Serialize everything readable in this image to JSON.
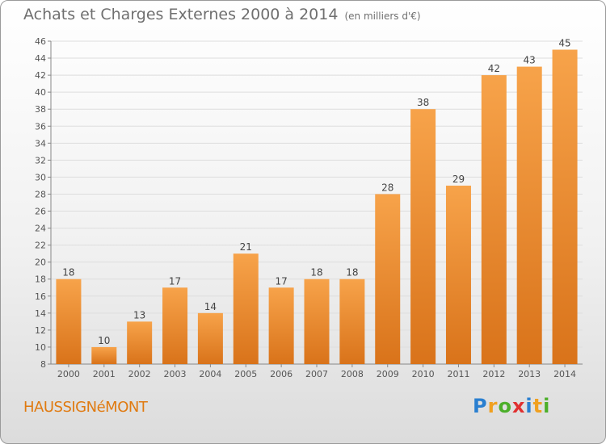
{
  "title": "Achats et Charges Externes 2000 à 2014",
  "subtitle": "(en milliers d'€)",
  "commune": "HAUSSIGNéMONT",
  "logo": {
    "text": "Proxiti",
    "letters": [
      {
        "ch": "P",
        "color": "#2a7fd0"
      },
      {
        "ch": "r",
        "color": "#f0a020"
      },
      {
        "ch": "o",
        "color": "#4caf2a"
      },
      {
        "ch": "x",
        "color": "#e03030"
      },
      {
        "ch": "i",
        "color": "#2a7fd0"
      },
      {
        "ch": "t",
        "color": "#f0a020"
      },
      {
        "ch": "i",
        "color": "#4caf2a"
      }
    ]
  },
  "colors": {
    "bar_light": "#f7a34a",
    "bar_dark": "#d9731a",
    "text": "#6f6f6f",
    "accent": "#e07a10"
  },
  "chart_data": {
    "type": "bar",
    "categories": [
      "2000",
      "2001",
      "2002",
      "2003",
      "2004",
      "2005",
      "2006",
      "2007",
      "2008",
      "2009",
      "2010",
      "2011",
      "2012",
      "2013",
      "2014"
    ],
    "values": [
      18,
      10,
      13,
      17,
      14,
      21,
      17,
      18,
      18,
      28,
      38,
      29,
      42,
      43,
      45
    ],
    "ylim": [
      8,
      46
    ],
    "yticks": [
      8,
      10,
      12,
      14,
      16,
      18,
      20,
      22,
      24,
      26,
      28,
      30,
      32,
      34,
      36,
      38,
      40,
      42,
      44,
      46
    ],
    "grid": true
  }
}
